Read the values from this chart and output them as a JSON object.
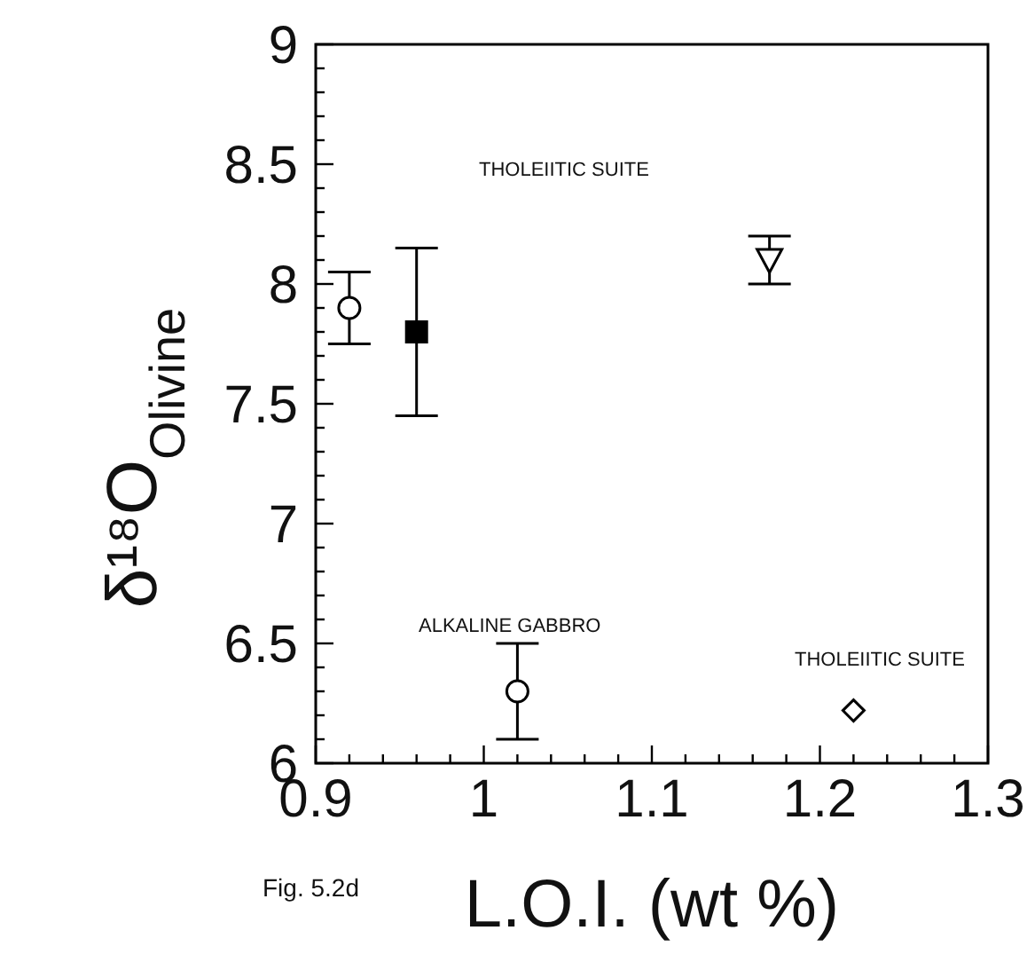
{
  "chart_data": {
    "type": "scatter",
    "xlabel": "L.O.I. (wt %)",
    "ylabel": "δ¹⁸O$_{Olivine}$",
    "series": [
      {
        "color": "#000000",
        "marker": "circle",
        "x": [
          0.92
        ],
        "values": [
          7.9
        ],
        "errors": [
          0.15
        ]
      },
      {
        "color": "#000000",
        "marker": "square",
        "x": [
          0.96
        ],
        "values": [
          7.8
        ],
        "errors": [
          0.35
        ]
      },
      {
        "color": "#000000",
        "marker": "triangle",
        "x": [
          1.17
        ],
        "values": [
          8.1
        ],
        "errors": [
          0.1
        ]
      },
      {
        "color": "#000000",
        "marker": "circle",
        "x": [
          1.02
        ],
        "values": [
          6.3
        ],
        "errors": [
          0.2
        ]
      },
      {
        "color": "#000000",
        "marker": "diamond",
        "x": [
          1.22
        ],
        "values": [
          6.22
        ]
      }
    ],
    "annotations": [
      "THOLEIITIC SUITE",
      "ALKALINE GABBRO",
      "THOLEIITIC SUITE",
      "Fig. 5.2d"
    ],
    "xlim": [
      0.9,
      1.3
    ],
    "xticks": [
      0.9,
      {
        "value": 0.92,
        "label": null
      },
      {
        "value": 0.94,
        "label": null
      },
      {
        "value": 0.96,
        "label": null
      },
      {
        "value": 0.98,
        "label": null
      },
      1,
      {
        "value": 1.02,
        "label": null
      },
      {
        "value": 1.04,
        "label": null
      },
      {
        "value": 1.06,
        "label": null
      },
      {
        "value": 1.08,
        "label": null
      },
      1.1,
      {
        "value": 1.12,
        "label": null
      },
      {
        "value": 1.14,
        "label": null
      },
      {
        "value": 1.16,
        "label": null
      },
      {
        "value": 1.18,
        "label": null
      },
      1.2,
      {
        "value": 1.22,
        "label": null
      },
      {
        "value": 1.24,
        "label": null
      },
      {
        "value": 1.26,
        "label": null
      },
      {
        "value": 1.28,
        "label": null
      },
      1.3
    ],
    "ylim": [
      6,
      9
    ],
    "yticks": [
      6,
      {
        "value": 6.1,
        "label": null
      },
      {
        "value": 6.2,
        "label": null
      },
      {
        "value": 6.3,
        "label": null
      },
      {
        "value": 6.4,
        "label": null
      },
      6.5,
      {
        "value": 6.6,
        "label": null
      },
      {
        "value": 6.7,
        "label": null
      },
      {
        "value": 6.8,
        "label": null
      },
      {
        "value": 6.9,
        "label": null
      },
      7,
      {
        "value": 7.1,
        "label": null
      },
      {
        "value": 7.2,
        "label": null
      },
      {
        "value": 7.3,
        "label": null
      },
      {
        "value": 7.4,
        "label": null
      },
      7.5,
      {
        "value": 7.6,
        "label": null
      },
      {
        "value": 7.7,
        "label": null
      },
      {
        "value": 7.8,
        "label": null
      },
      {
        "value": 7.9,
        "label": null
      },
      8,
      {
        "value": 8.1,
        "label": null
      },
      {
        "value": 8.2,
        "label": null
      },
      {
        "value": 8.3,
        "label": null
      },
      {
        "value": 8.4,
        "label": null
      },
      8.5,
      {
        "value": 8.6,
        "label": null
      },
      {
        "value": 8.7,
        "label": null
      },
      {
        "value": 8.8,
        "label": null
      },
      {
        "value": 8.9,
        "label": null
      },
      9
    ],
    "grid": false,
    "legend": false
  }
}
